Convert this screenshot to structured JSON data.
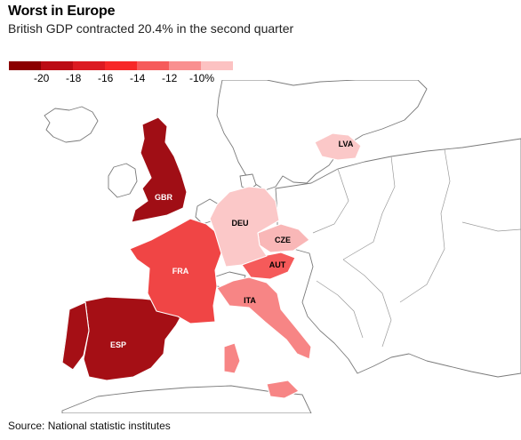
{
  "title": "Worst in Europe",
  "subtitle": "British GDP contracted 20.4% in the second quarter",
  "legend": {
    "labels": [
      "-20",
      "-18",
      "-16",
      "-14",
      "-12",
      "-10%"
    ],
    "colors": [
      "#8b0000",
      "#bb0c14",
      "#dc1b22",
      "#f72828",
      "#f65b5b",
      "#f99090",
      "#fcc2c2"
    ]
  },
  "countries": [
    {
      "code": "GBR",
      "gdp_change": -20.4,
      "color": "#a00e15",
      "label_color": "#ffffff"
    },
    {
      "code": "ESP",
      "gdp_change": -18.5,
      "color": "#a50f15",
      "label_color": "#ffffff"
    },
    {
      "code": "FRA",
      "gdp_change": -13.8,
      "color": "#f04545",
      "label_color": "#ffffff"
    },
    {
      "code": "ITA",
      "gdp_change": -12.4,
      "color": "#f78585",
      "label_color": "#000000"
    },
    {
      "code": "AUT",
      "gdp_change": -12.8,
      "color": "#f55a5a",
      "label_color": "#000000"
    },
    {
      "code": "CZE",
      "gdp_change": -10.7,
      "color": "#f9b7b7",
      "label_color": "#000000"
    },
    {
      "code": "DEU",
      "gdp_change": -10.1,
      "color": "#fbc8c8",
      "label_color": "#000000"
    },
    {
      "code": "LVA",
      "gdp_change": -9.6,
      "color": "#fbc8c8",
      "label_color": "#000000"
    }
  ],
  "source": "Source: National statistic institutes"
}
